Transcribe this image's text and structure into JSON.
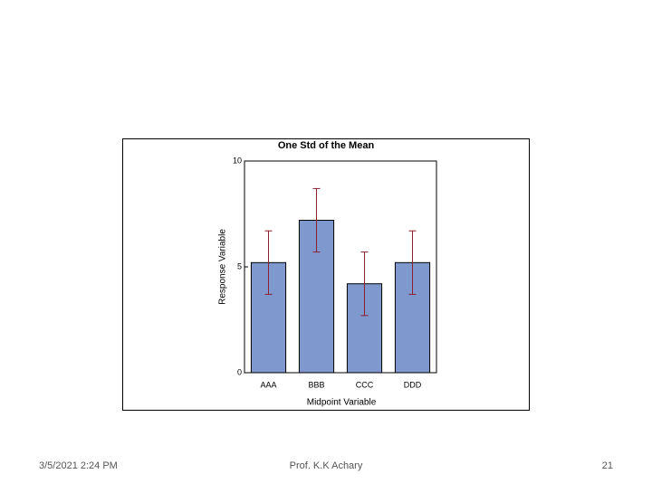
{
  "chart_data": {
    "type": "bar",
    "title": "One Std of the Mean",
    "x_label": "Midpoint Variable",
    "y_label": "Response Variable",
    "categories": [
      "AAA",
      "BBB",
      "CCC",
      "DDD"
    ],
    "values": [
      5.2,
      7.2,
      4.2,
      5.2
    ],
    "errors": [
      1.5,
      1.5,
      1.5,
      1.5
    ],
    "color": "#7f99cf",
    "error_color": "#8b2030",
    "ylim": [
      0,
      10
    ],
    "yticks": [
      0,
      5,
      10
    ]
  },
  "footer": {
    "date": "3/5/2021 2:24 PM",
    "author": "Prof. K.K Achary",
    "page": "21"
  }
}
